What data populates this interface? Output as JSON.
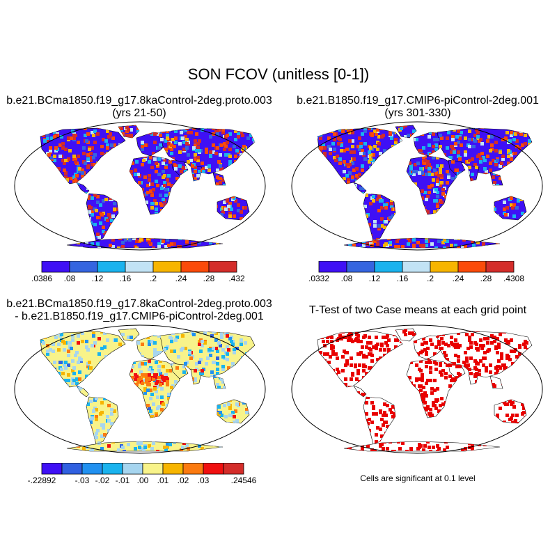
{
  "title": "SON FCOV (unitless [0-1])",
  "panels": [
    {
      "id": "case",
      "title_line1": "b.e21.BCma1850.f19_g17.8kaControl-2deg.proto.003",
      "title_line2": "(yrs 21-50)",
      "colorbar": {
        "colors": [
          "#3f10f5",
          "#3565e0",
          "#1ab3ee",
          "#c2e3f5",
          "#f7b500",
          "#fb4b0a",
          "#d42d2a"
        ],
        "labels": [
          ".0386",
          ".08",
          ".12",
          ".16",
          ".2",
          ".24",
          ".28",
          ".432"
        ]
      }
    },
    {
      "id": "control",
      "title_line1": "b.e21.B1850.f19_g17.CMIP6-piControl-2deg.001",
      "title_line2": "(yrs 301-330)",
      "colorbar": {
        "colors": [
          "#3f10f5",
          "#3565e0",
          "#1ab3ee",
          "#c2e3f5",
          "#f7b500",
          "#fb4b0a",
          "#d42d2a"
        ],
        "labels": [
          ".0332",
          ".08",
          ".12",
          ".16",
          ".2",
          ".24",
          ".28",
          ".4308"
        ]
      }
    },
    {
      "id": "difference",
      "title_line1": "b.e21.BCma1850.f19_g17.8kaControl-2deg.proto.003",
      "title_line2": "- b.e21.B1850.f19_g17.CMIP6-piControl-2deg.001",
      "colorbar": {
        "colors": [
          "#3f10f5",
          "#3060e0",
          "#2191f0",
          "#1ab3ee",
          "#a6d5ef",
          "#f8f38a",
          "#f7b500",
          "#fb7a10",
          "#f01010",
          "#d42d2a"
        ],
        "labels": [
          "-.22892",
          "",
          "-.03",
          "-.02",
          "-.01",
          ".00",
          ".01",
          ".02",
          ".03",
          "",
          ".24546"
        ]
      }
    },
    {
      "id": "ttest",
      "title_line1": "T-Test of two Case means at each grid point",
      "note": "Cells are significant at 0.1 level",
      "significant_color": "#e80000"
    }
  ]
}
